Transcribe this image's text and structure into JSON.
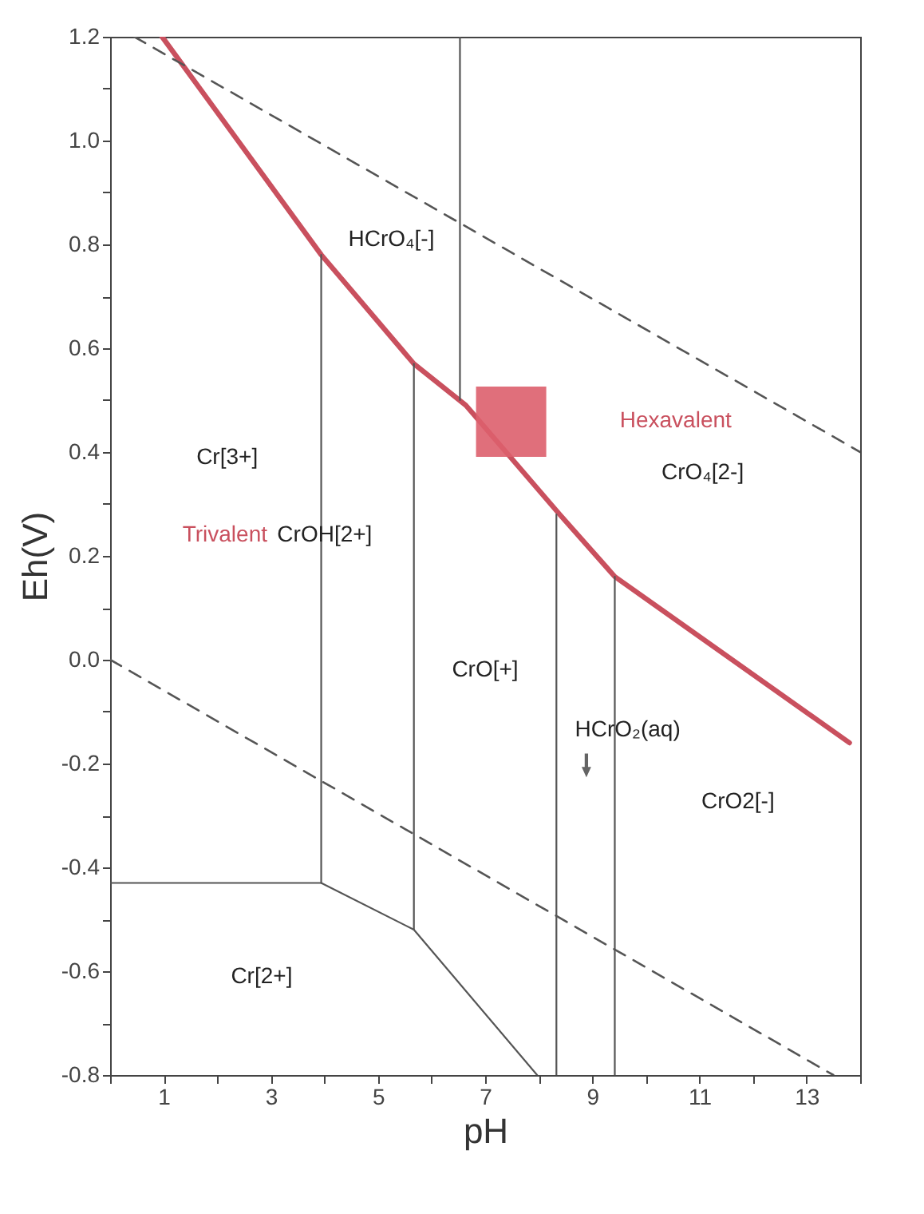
{
  "chart_data": {
    "type": "line",
    "xlabel": "pH",
    "ylabel": "Eh(V)",
    "xlim": [
      0,
      14
    ],
    "ylim": [
      -0.8,
      1.2
    ],
    "xticks": [
      {
        "value": 0,
        "label": null
      },
      1,
      {
        "value": 2,
        "label": null
      },
      3,
      {
        "value": 4,
        "label": null
      },
      5,
      {
        "value": 6,
        "label": null
      },
      7,
      {
        "value": 8,
        "label": null
      },
      9,
      {
        "value": 10,
        "label": null
      },
      11,
      {
        "value": 12,
        "label": null
      },
      13,
      {
        "value": 14,
        "label": null
      }
    ],
    "yticks": [
      -0.8,
      {
        "value": -0.7,
        "label": null
      },
      -0.6,
      {
        "value": -0.5,
        "label": null
      },
      -0.4,
      {
        "value": -0.3,
        "label": null
      },
      -0.2,
      {
        "value": -0.1,
        "label": null
      },
      {
        "value": 0,
        "label": "0.0"
      },
      {
        "value": 0.1,
        "label": null
      },
      0.2,
      {
        "value": 0.3,
        "label": null
      },
      0.4,
      {
        "value": 0.5,
        "label": null
      },
      0.6,
      {
        "value": 0.7,
        "label": null
      },
      0.8,
      {
        "value": 0.9,
        "label": null
      },
      {
        "value": 1,
        "label": "1.0"
      },
      {
        "value": 1.1,
        "label": null
      },
      1.2
    ],
    "grid": false,
    "series": [
      {
        "color": "#c9505e",
        "x": [
          0.97,
          3.94,
          5.67,
          6.64,
          8.39,
          9.42,
          13.8
        ],
        "values": [
          1.2,
          0.78,
          0.57,
          0.49,
          0.28,
          0.16,
          -0.16
        ]
      },
      {
        "color": "#555555",
        "line_style": "dashed",
        "x": [
          0.45,
          14
        ],
        "values": [
          1.2,
          0.4
        ]
      },
      {
        "color": "#555555",
        "line_style": "dashed",
        "x": [
          0,
          13.5
        ],
        "values": [
          0,
          -0.8
        ]
      },
      {
        "color": "#555555",
        "x": [
          0,
          3.94,
          5.67,
          7.97
        ],
        "values": [
          -0.43,
          -0.43,
          -0.52,
          -0.8
        ]
      },
      {
        "color": "#555555",
        "x": [
          3.94,
          3.94
        ],
        "values": [
          -0.43,
          0.78
        ]
      },
      {
        "color": "#555555",
        "x": [
          5.67,
          5.67
        ],
        "values": [
          -0.52,
          0.57
        ]
      },
      {
        "color": "#555555",
        "x": [
          6.53,
          6.53
        ],
        "values": [
          0.5,
          1.2
        ]
      },
      {
        "color": "#555555",
        "x": [
          8.33,
          8.33
        ],
        "values": [
          0.28,
          -0.8
        ]
      },
      {
        "color": "#555555",
        "x": [
          9.42,
          9.42
        ],
        "values": [
          0.16,
          -0.8
        ]
      }
    ],
    "annotations": [
      "HCrO₄[-]",
      "Cr[3+]",
      "Hexavalent",
      "CrO₄[2-]",
      "Trivalent",
      "CrOH[2+]",
      "CrO[+]",
      "HCrO₂(aq)",
      "CrO2[-]",
      "Cr[2+]"
    ]
  }
}
